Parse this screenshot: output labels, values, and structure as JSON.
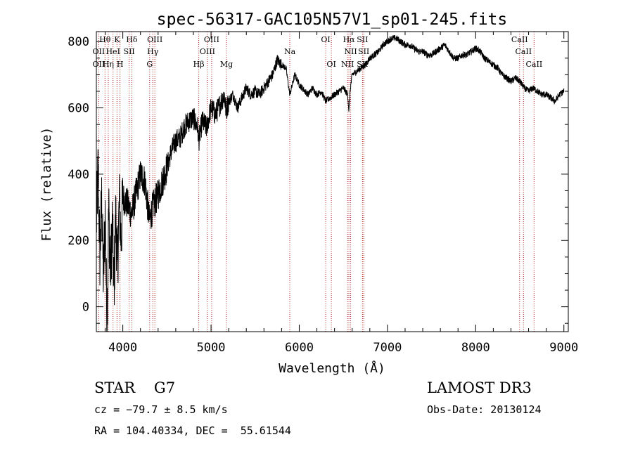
{
  "chart_data": {
    "type": "line",
    "title": "spec-56317-GAC105N57V1_sp01-245.fits",
    "xlabel": "Wavelength (Å)",
    "ylabel": "Flux (relative)",
    "xlim": [
      3700,
      9050
    ],
    "ylim": [
      -75,
      830
    ],
    "xticks": [
      4000,
      5000,
      6000,
      7000,
      8000,
      9000
    ],
    "xtick_labels": [
      "4000",
      "5000",
      "6000",
      "7000",
      "8000",
      "9000"
    ],
    "yticks": [
      0,
      200,
      400,
      600,
      800
    ],
    "ytick_labels": [
      "0",
      "200",
      "400",
      "600",
      "800"
    ],
    "series": [
      {
        "name": "flux",
        "color": "#000000",
        "x": [
          3700,
          3720,
          3740,
          3760,
          3780,
          3800,
          3820,
          3840,
          3860,
          3880,
          3900,
          3920,
          3940,
          3960,
          3980,
          4000,
          4050,
          4100,
          4150,
          4200,
          4250,
          4300,
          4340,
          4400,
          4450,
          4500,
          4550,
          4600,
          4650,
          4700,
          4750,
          4800,
          4850,
          4861,
          4900,
          4950,
          5000,
          5050,
          5100,
          5150,
          5170,
          5200,
          5250,
          5300,
          5350,
          5400,
          5450,
          5500,
          5550,
          5600,
          5650,
          5700,
          5750,
          5800,
          5850,
          5893,
          5950,
          6000,
          6050,
          6100,
          6150,
          6200,
          6250,
          6300,
          6350,
          6400,
          6450,
          6500,
          6550,
          6563,
          6580,
          6600,
          6650,
          6700,
          6750,
          6800,
          6850,
          6900,
          6950,
          7000,
          7050,
          7100,
          7150,
          7200,
          7250,
          7300,
          7350,
          7400,
          7450,
          7500,
          7550,
          7600,
          7650,
          7700,
          7750,
          7800,
          7850,
          7900,
          7950,
          8000,
          8050,
          8100,
          8150,
          8200,
          8250,
          8300,
          8350,
          8400,
          8450,
          8500,
          8550,
          8600,
          8650,
          8700,
          8750,
          8800,
          8850,
          8900,
          8950,
          9000
        ],
        "y": [
          250,
          420,
          150,
          320,
          80,
          280,
          -50,
          300,
          100,
          250,
          50,
          280,
          120,
          320,
          200,
          330,
          310,
          280,
          340,
          400,
          380,
          260,
          300,
          340,
          380,
          420,
          470,
          500,
          510,
          545,
          560,
          570,
          540,
          500,
          560,
          540,
          600,
          580,
          610,
          640,
          590,
          620,
          640,
          600,
          630,
          660,
          640,
          650,
          640,
          660,
          680,
          700,
          745,
          730,
          720,
          640,
          700,
          670,
          655,
          640,
          660,
          640,
          650,
          620,
          630,
          640,
          650,
          660,
          640,
          590,
          660,
          700,
          710,
          720,
          730,
          750,
          760,
          770,
          790,
          800,
          810,
          810,
          800,
          790,
          790,
          780,
          770,
          770,
          760,
          760,
          770,
          780,
          790,
          770,
          750,
          750,
          760,
          760,
          770,
          780,
          770,
          750,
          740,
          730,
          720,
          700,
          690,
          680,
          690,
          680,
          660,
          650,
          660,
          650,
          640,
          640,
          630,
          620,
          640,
          650
        ]
      }
    ],
    "line_color": "#b22222",
    "line_labels": [
      {
        "text": "Hθ",
        "row": 0,
        "wl": 3798
      },
      {
        "text": "K",
        "row": 0,
        "wl": 3934
      },
      {
        "text": "Hδ",
        "row": 0,
        "wl": 4102
      },
      {
        "text": "OIII",
        "row": 0,
        "wl": 4363
      },
      {
        "text": "OIII",
        "row": 0,
        "wl": 5007
      },
      {
        "text": "OI",
        "row": 0,
        "wl": 6300
      },
      {
        "text": "Hα",
        "row": 0,
        "wl": 6563
      },
      {
        "text": "SII",
        "row": 0,
        "wl": 6717
      },
      {
        "text": "CaII",
        "row": 0,
        "wl": 8498
      },
      {
        "text": "OII",
        "row": 1,
        "wl": 3727
      },
      {
        "text": "HeI",
        "row": 1,
        "wl": 3889
      },
      {
        "text": "SII",
        "row": 1,
        "wl": 4072
      },
      {
        "text": "Hγ",
        "row": 1,
        "wl": 4340
      },
      {
        "text": "OIII",
        "row": 1,
        "wl": 4959
      },
      {
        "text": "Na",
        "row": 1,
        "wl": 5893
      },
      {
        "text": "NII",
        "row": 1,
        "wl": 6583
      },
      {
        "text": "SII",
        "row": 1,
        "wl": 6731
      },
      {
        "text": "CaII",
        "row": 1,
        "wl": 8542
      },
      {
        "text": "OII",
        "row": 2,
        "wl": 3727
      },
      {
        "text": "Hη",
        "row": 2,
        "wl": 3835
      },
      {
        "text": "H",
        "row": 2,
        "wl": 3968
      },
      {
        "text": "G",
        "row": 2,
        "wl": 4304
      },
      {
        "text": "Hβ",
        "row": 2,
        "wl": 4861
      },
      {
        "text": "Mg",
        "row": 2,
        "wl": 5175
      },
      {
        "text": "OI",
        "row": 2,
        "wl": 6364
      },
      {
        "text": "NII",
        "row": 2,
        "wl": 6548
      },
      {
        "text": "SII",
        "row": 2,
        "wl": 6717
      },
      {
        "text": "CaII",
        "row": 2,
        "wl": 8662
      }
    ],
    "line_positions": [
      3727,
      3798,
      3835,
      3889,
      3934,
      3968,
      4072,
      4102,
      4304,
      4340,
      4363,
      4861,
      4959,
      5007,
      5175,
      5893,
      6300,
      6364,
      6548,
      6563,
      6583,
      6717,
      6731,
      8498,
      8542,
      8662
    ]
  },
  "info": {
    "object": "STAR    G7",
    "survey": "LAMOST DR3",
    "redshift": "cz = −79.7 ± 8.5 km/s",
    "obs_date": "Obs-Date: 20130124",
    "coords": "RA = 104.40334, DEC =  55.61544"
  }
}
